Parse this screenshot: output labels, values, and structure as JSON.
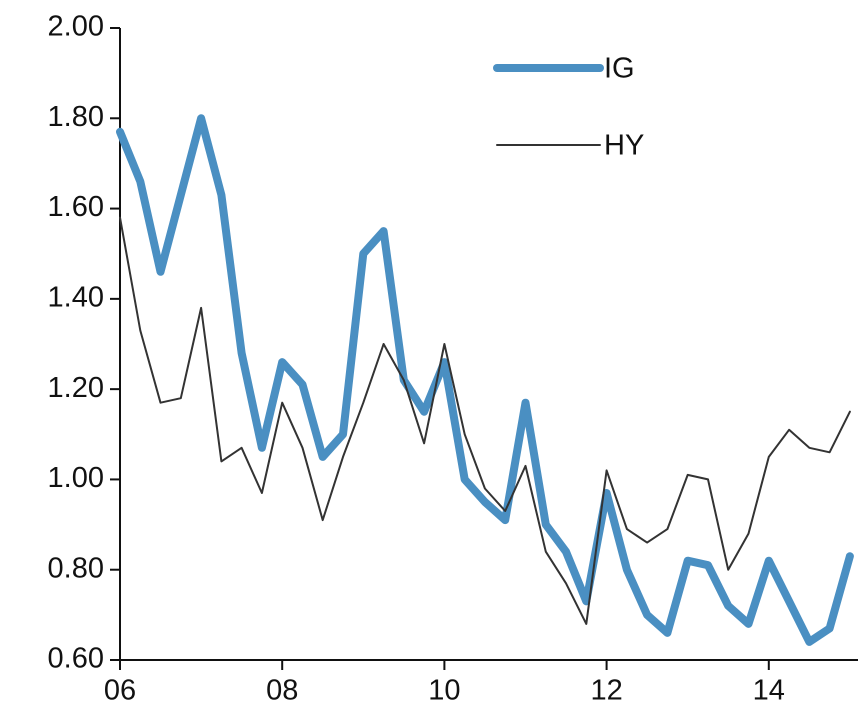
{
  "chart_data": {
    "type": "line",
    "x": [
      2006,
      2006.25,
      2006.5,
      2006.75,
      2007,
      2007.25,
      2007.5,
      2007.75,
      2008,
      2008.25,
      2008.5,
      2008.75,
      2009,
      2009.25,
      2009.5,
      2009.75,
      2010,
      2010.25,
      2010.5,
      2010.75,
      2011,
      2011.25,
      2011.5,
      2011.75,
      2012,
      2012.25,
      2012.5,
      2012.75,
      2013,
      2013.25,
      2013.5,
      2013.75,
      2014,
      2014.25,
      2014.5,
      2014.75,
      2015
    ],
    "series": [
      {
        "name": "IG",
        "color": "#4a8fc2",
        "width": 8,
        "values": [
          1.77,
          1.66,
          1.46,
          1.63,
          1.8,
          1.63,
          1.28,
          1.07,
          1.26,
          1.21,
          1.05,
          1.1,
          1.5,
          1.55,
          1.22,
          1.15,
          1.26,
          1.0,
          0.95,
          0.91,
          1.17,
          0.9,
          0.84,
          0.73,
          0.97,
          0.8,
          0.7,
          0.66,
          0.82,
          0.81,
          0.72,
          0.68,
          0.82,
          0.73,
          0.64,
          0.67,
          0.83
        ]
      },
      {
        "name": "HY",
        "color": "#333333",
        "width": 2,
        "values": [
          1.58,
          1.33,
          1.17,
          1.18,
          1.38,
          1.04,
          1.07,
          0.97,
          1.17,
          1.07,
          0.91,
          1.05,
          1.17,
          1.3,
          1.22,
          1.08,
          1.3,
          1.1,
          0.98,
          0.93,
          1.03,
          0.84,
          0.77,
          0.68,
          1.02,
          0.89,
          0.86,
          0.89,
          1.01,
          1.0,
          0.8,
          0.88,
          1.05,
          1.11,
          1.07,
          1.06,
          1.15
        ]
      }
    ],
    "xlim": [
      2006,
      2015.1
    ],
    "xticks": [
      {
        "value": 2006,
        "label": "06"
      },
      {
        "value": 2008,
        "label": "08"
      },
      {
        "value": 2010,
        "label": "10"
      },
      {
        "value": 2012,
        "label": "12"
      },
      {
        "value": 2014,
        "label": "14"
      }
    ],
    "ylim": [
      0.6,
      2.0
    ],
    "yticks": [
      {
        "value": 0.6,
        "label": "0.60"
      },
      {
        "value": 0.8,
        "label": "0.80"
      },
      {
        "value": 1.0,
        "label": "1.00"
      },
      {
        "value": 1.2,
        "label": "1.20"
      },
      {
        "value": 1.4,
        "label": "1.40"
      },
      {
        "value": 1.6,
        "label": "1.60"
      },
      {
        "value": 1.8,
        "label": "1.80"
      },
      {
        "value": 2.0,
        "label": "2.00"
      }
    ],
    "grid": false,
    "legend": "upper right"
  }
}
